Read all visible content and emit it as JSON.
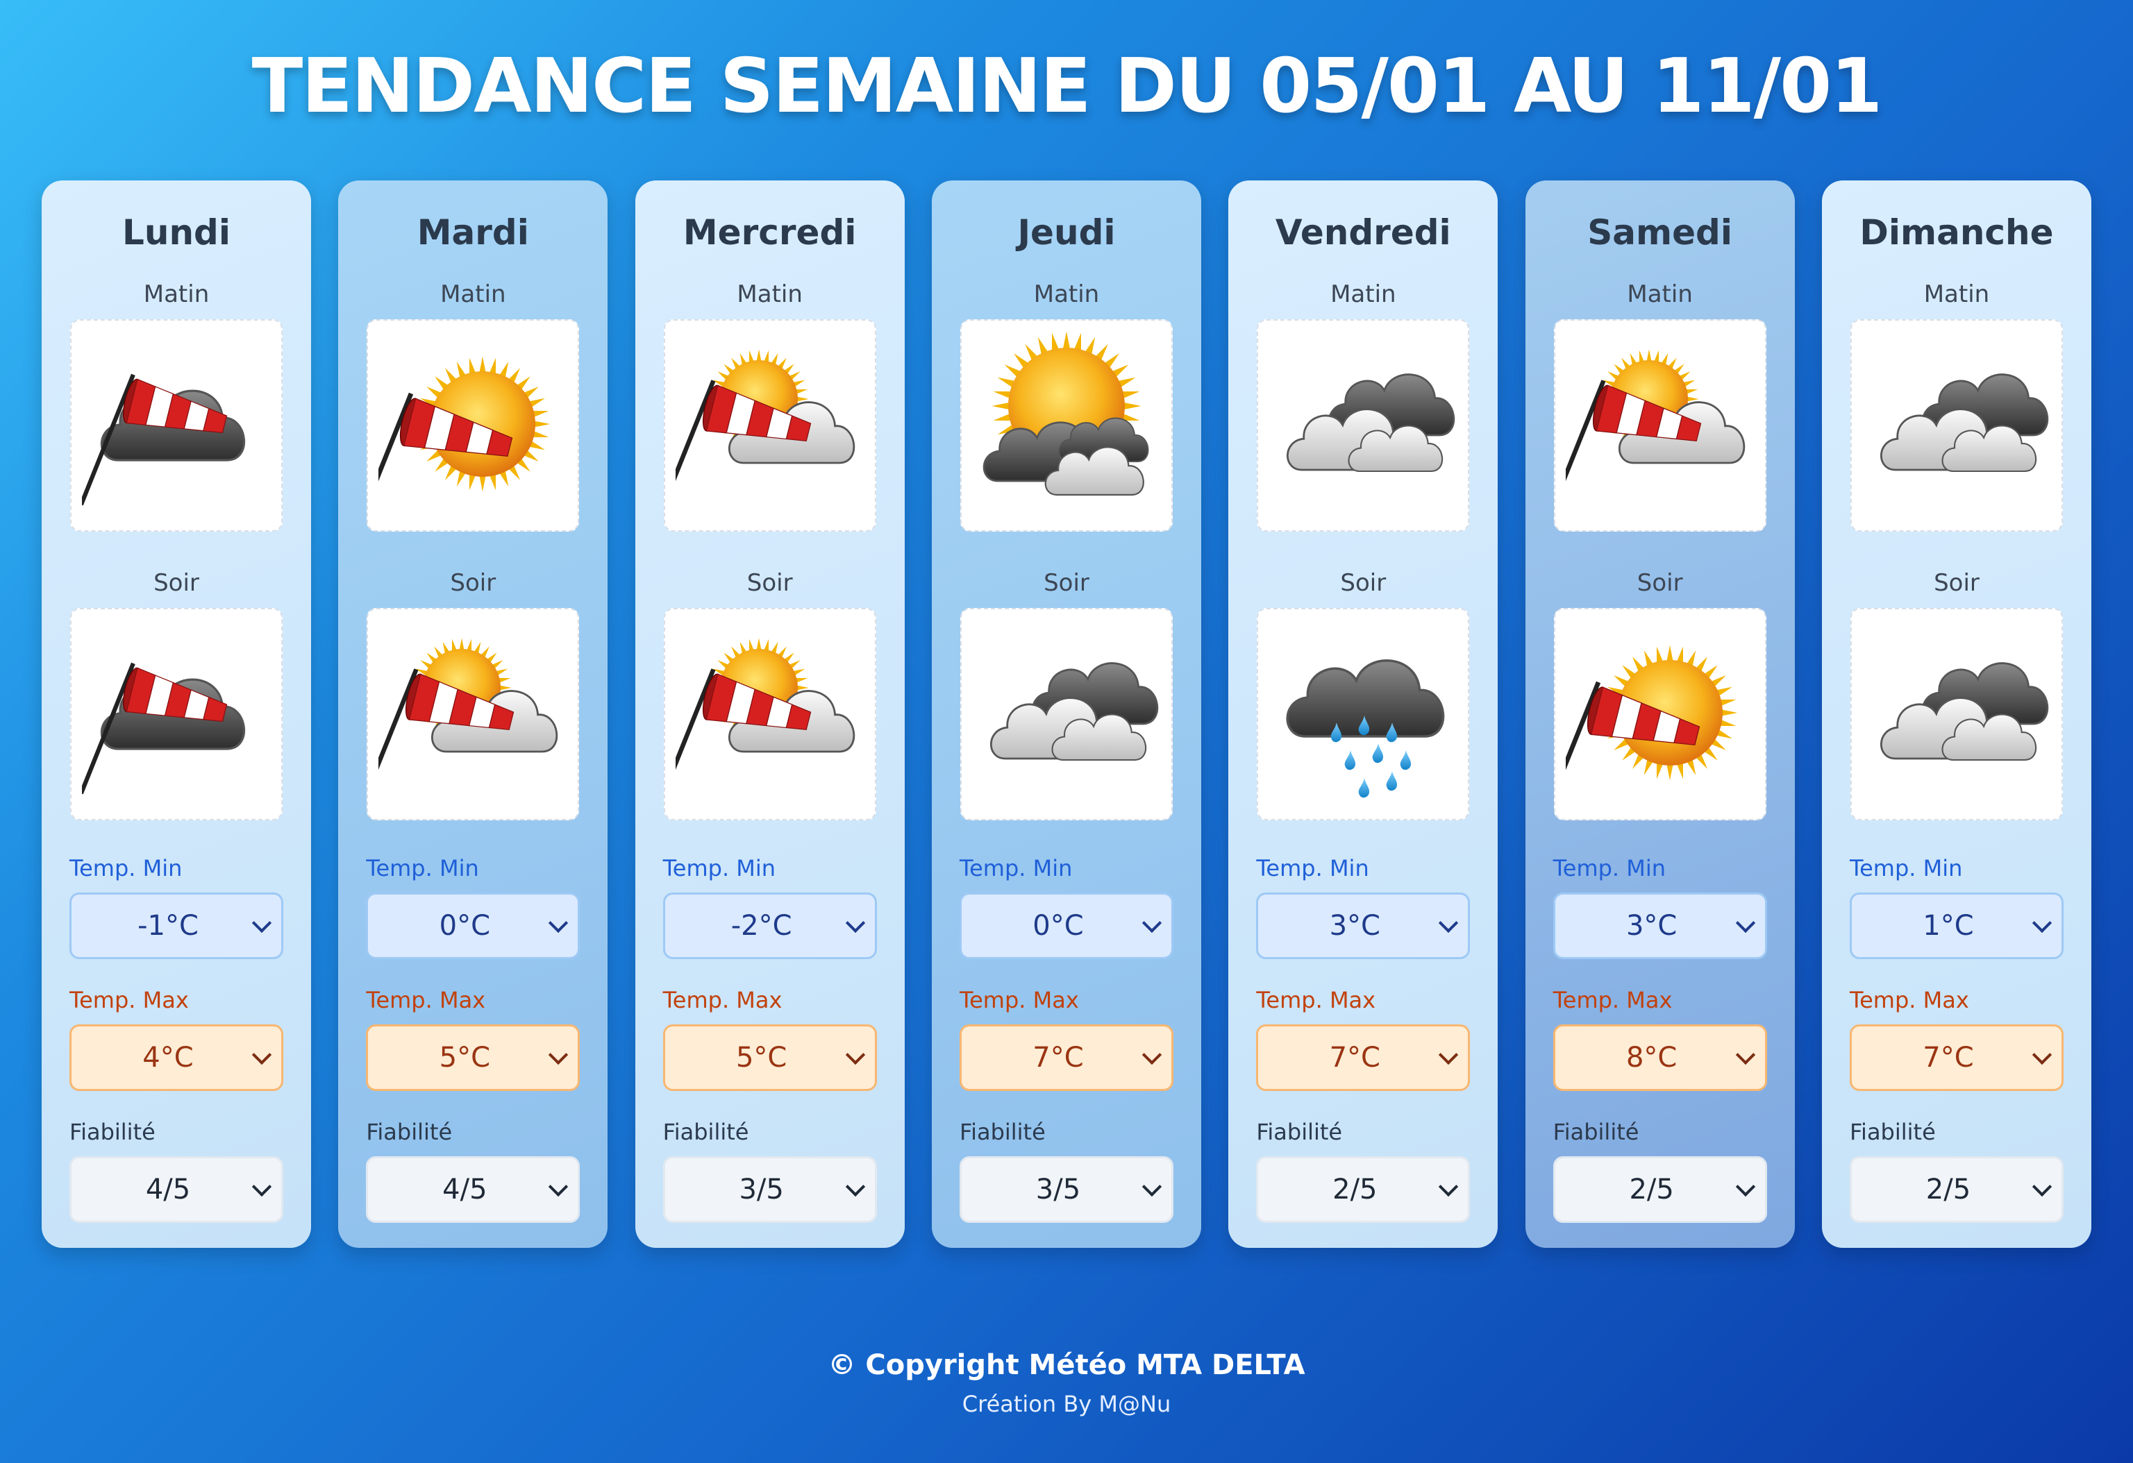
{
  "title": "TENDANCE SEMAINE DU 05/01 AU 11/01",
  "labels": {
    "matin": "Matin",
    "soir": "Soir",
    "temp_min": "Temp. Min",
    "temp_max": "Temp. Max",
    "fiabilite": "Fiabilité"
  },
  "days": [
    {
      "name": "Lundi",
      "tone": "light",
      "matin_icon": "windsock-dark-cloud-icon",
      "soir_icon": "windsock-dark-cloud-icon",
      "temp_min": "-1°C",
      "temp_max": "4°C",
      "fiabilite": "4/5"
    },
    {
      "name": "Mardi",
      "tone": "mid",
      "matin_icon": "windsock-sun-icon",
      "soir_icon": "windsock-sun-cloud-icon",
      "temp_min": "0°C",
      "temp_max": "5°C",
      "fiabilite": "4/5"
    },
    {
      "name": "Mercredi",
      "tone": "light",
      "matin_icon": "windsock-sun-cloud-icon",
      "soir_icon": "windsock-sun-cloud-icon",
      "temp_min": "-2°C",
      "temp_max": "5°C",
      "fiabilite": "3/5"
    },
    {
      "name": "Jeudi",
      "tone": "mid",
      "matin_icon": "sun-dark-clouds-icon",
      "soir_icon": "overcast-clouds-icon",
      "temp_min": "0°C",
      "temp_max": "7°C",
      "fiabilite": "3/5"
    },
    {
      "name": "Vendredi",
      "tone": "light",
      "matin_icon": "overcast-clouds-icon",
      "soir_icon": "rain-cloud-icon",
      "temp_min": "3°C",
      "temp_max": "7°C",
      "fiabilite": "2/5"
    },
    {
      "name": "Samedi",
      "tone": "dark",
      "matin_icon": "windsock-sun-cloud-icon",
      "soir_icon": "windsock-sun-icon",
      "temp_min": "3°C",
      "temp_max": "8°C",
      "fiabilite": "2/5"
    },
    {
      "name": "Dimanche",
      "tone": "light",
      "matin_icon": "overcast-clouds-icon",
      "soir_icon": "overcast-clouds-icon",
      "temp_min": "1°C",
      "temp_max": "7°C",
      "fiabilite": "2/5"
    }
  ],
  "footer": {
    "copyright": "© Copyright Météo MTA DELTA",
    "credit": "Création By M@Nu"
  }
}
